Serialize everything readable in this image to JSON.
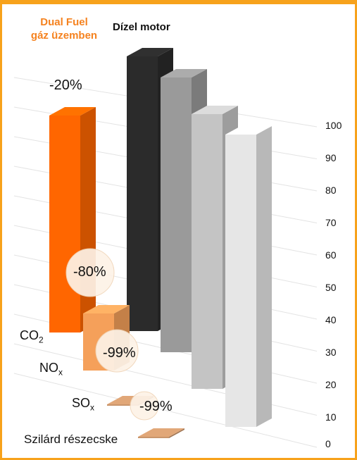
{
  "legend": {
    "dual_fuel_line1": "Dual Fuel",
    "dual_fuel_line2": "gáz üzemben",
    "diesel": "Dízel motor"
  },
  "colors": {
    "frame": "#f7a21b",
    "dual_fuel": "#ff6600",
    "dual_fuel_light": "#f5a05a",
    "diesel_bars": [
      "#2b2b2b",
      "#9a9a9a",
      "#c4c4c4",
      "#e6e6e6"
    ]
  },
  "chart_data": {
    "type": "bar",
    "subtype": "3d-clustered",
    "categories": [
      "CO2",
      "NOx",
      "SOx",
      "Szilárd részecske"
    ],
    "category_labels": [
      {
        "main": "CO",
        "sub": "2"
      },
      {
        "main": "NO",
        "sub": "x"
      },
      {
        "main": "SO",
        "sub": "x"
      },
      {
        "main": "Szilárd részecske",
        "sub": ""
      }
    ],
    "series": [
      {
        "name": "Dual Fuel gáz üzemben",
        "values": [
          80,
          20,
          1,
          1
        ]
      },
      {
        "name": "Dízel motor",
        "values": [
          100,
          100,
          100,
          100
        ]
      }
    ],
    "reduction_labels": [
      "-20%",
      "-80%",
      "-99%",
      "-99%"
    ],
    "y_ticks": [
      "100",
      "90",
      "80",
      "70",
      "60",
      "50",
      "40",
      "30",
      "20",
      "10",
      "0"
    ],
    "ylim": [
      0,
      100
    ],
    "grid": true,
    "legend_position": "top-left"
  }
}
